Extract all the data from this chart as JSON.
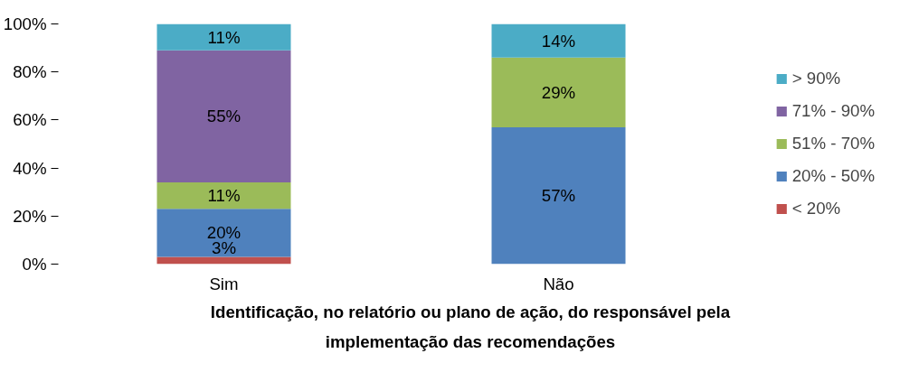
{
  "chart_data": {
    "type": "bar",
    "stacked": true,
    "xlabel": "Identificação, no relatório ou plano de ação, do responsável pela\nimplementação das recomendações",
    "categories": [
      "Sim",
      "Não"
    ],
    "series": [
      {
        "name": "< 20%",
        "color": "#c0504d",
        "values": [
          3,
          0
        ],
        "value_labels": [
          "3%",
          null
        ]
      },
      {
        "name": "20% - 50%",
        "color": "#4f81bd",
        "values": [
          20,
          57
        ],
        "value_labels": [
          "20%",
          "57%"
        ]
      },
      {
        "name": "51% - 70%",
        "color": "#9bbb59",
        "values": [
          11,
          29
        ],
        "value_labels": [
          "11%",
          "29%"
        ]
      },
      {
        "name": "71% - 90%",
        "color": "#8064a2",
        "values": [
          55,
          0
        ],
        "value_labels": [
          "55%",
          null
        ]
      },
      {
        "name": "> 90%",
        "color": "#4bacc6",
        "values": [
          11,
          14
        ],
        "value_labels": [
          "11%",
          "14%"
        ]
      }
    ],
    "ylim": [
      0,
      100
    ],
    "yticks": [
      {
        "value": 0,
        "label": "0%"
      },
      {
        "value": 20,
        "label": "20%"
      },
      {
        "value": 40,
        "label": "40%"
      },
      {
        "value": 60,
        "label": "60%"
      },
      {
        "value": 80,
        "label": "80%"
      },
      {
        "value": 100,
        "label": "100%"
      }
    ],
    "grid": false,
    "legend": "right"
  }
}
